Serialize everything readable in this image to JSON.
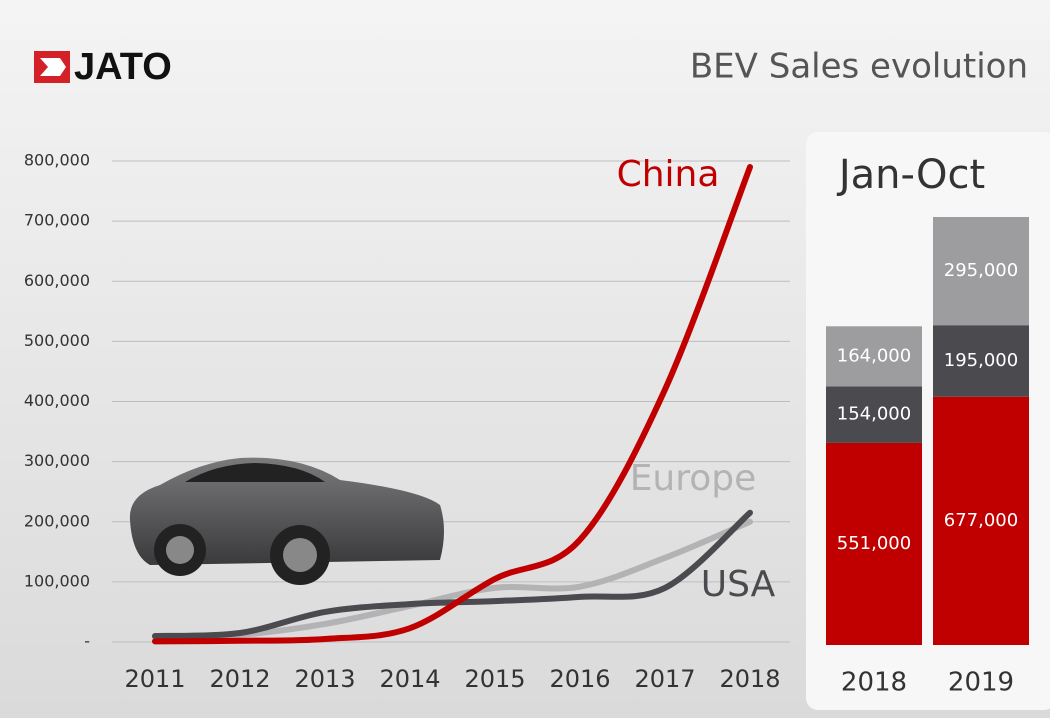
{
  "logo": "JATO",
  "chart_data": [
    {
      "type": "line",
      "title": "BEV Sales evolution",
      "categories": [
        "2011",
        "2012",
        "2013",
        "2014",
        "2015",
        "2016",
        "2017",
        "2018"
      ],
      "series": [
        {
          "name": "China",
          "color": "#c00000",
          "values": [
            1000,
            2000,
            5000,
            23000,
            105000,
            170000,
            420000,
            790000
          ]
        },
        {
          "name": "Europe",
          "color": "#b3b3b5",
          "values": [
            8000,
            12000,
            30000,
            60000,
            90000,
            92000,
            140000,
            200000
          ]
        },
        {
          "name": "USA",
          "color": "#4a4a4f",
          "values": [
            10000,
            15000,
            50000,
            63000,
            68000,
            75000,
            90000,
            215000
          ]
        }
      ],
      "ylim": [
        0,
        800000
      ],
      "yticks": [
        {
          "value": 0,
          "label": "-"
        },
        {
          "value": 100000,
          "label": "100,000"
        },
        {
          "value": 200000,
          "label": "200,000"
        },
        {
          "value": 300000,
          "label": "300,000"
        },
        {
          "value": 400000,
          "label": "400,000"
        },
        {
          "value": 500000,
          "label": "500,000"
        },
        {
          "value": 600000,
          "label": "600,000"
        },
        {
          "value": 700000,
          "label": "700,000"
        },
        {
          "value": 800000,
          "label": "800,000"
        }
      ],
      "grid": true
    },
    {
      "type": "stacked-bar",
      "title": "Jan-Oct",
      "categories": [
        "2018",
        "2019"
      ],
      "series": [
        {
          "color": "#c00000",
          "values": [
            551000,
            677000
          ],
          "value_labels": [
            "551,000",
            "677,000"
          ]
        },
        {
          "color": "#4a4a4f",
          "values": [
            154000,
            195000
          ],
          "value_labels": [
            "154,000",
            "195,000"
          ]
        },
        {
          "color": "#9d9d9f",
          "values": [
            164000,
            295000
          ],
          "value_labels": [
            "164,000",
            "295,000"
          ]
        }
      ]
    }
  ]
}
